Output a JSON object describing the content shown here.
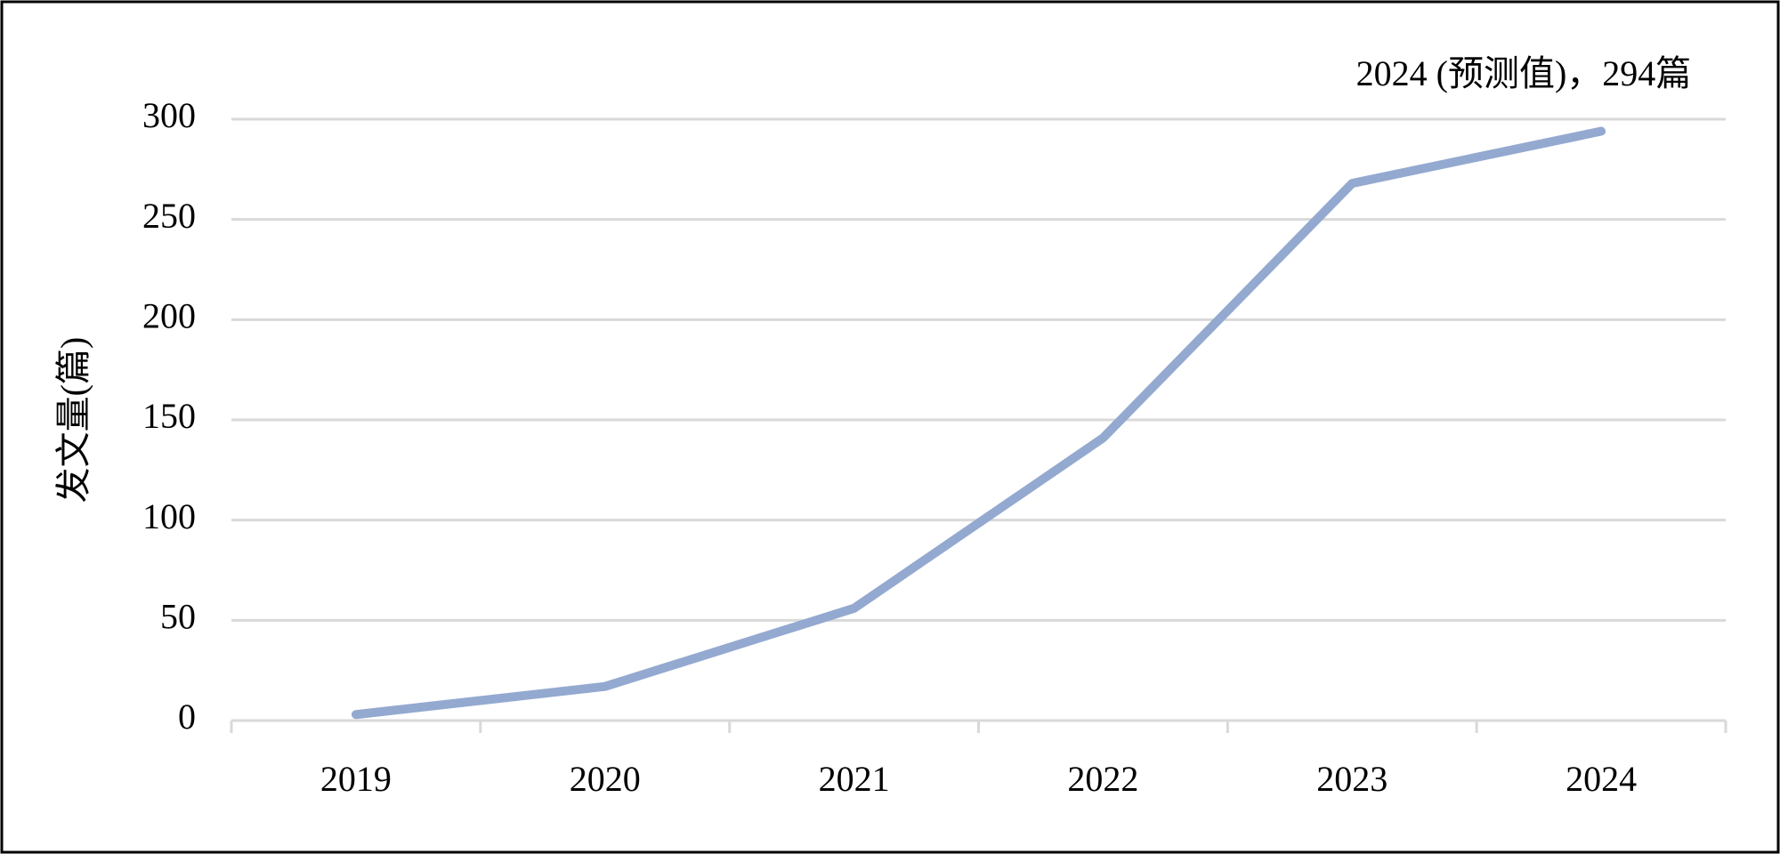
{
  "chart_data": {
    "type": "line",
    "annotation": "2024 (预测值)，294篇",
    "y_label": "发文量(篇)",
    "categories": [
      "2019",
      "2020",
      "2021",
      "2022",
      "2023",
      "2024"
    ],
    "values": [
      3,
      17,
      56,
      141,
      268,
      294
    ],
    "color": "#94a9d0",
    "ylim": [
      0,
      300
    ],
    "yticks": [
      0,
      50,
      100,
      150,
      200,
      250,
      300
    ],
    "grid": true
  }
}
